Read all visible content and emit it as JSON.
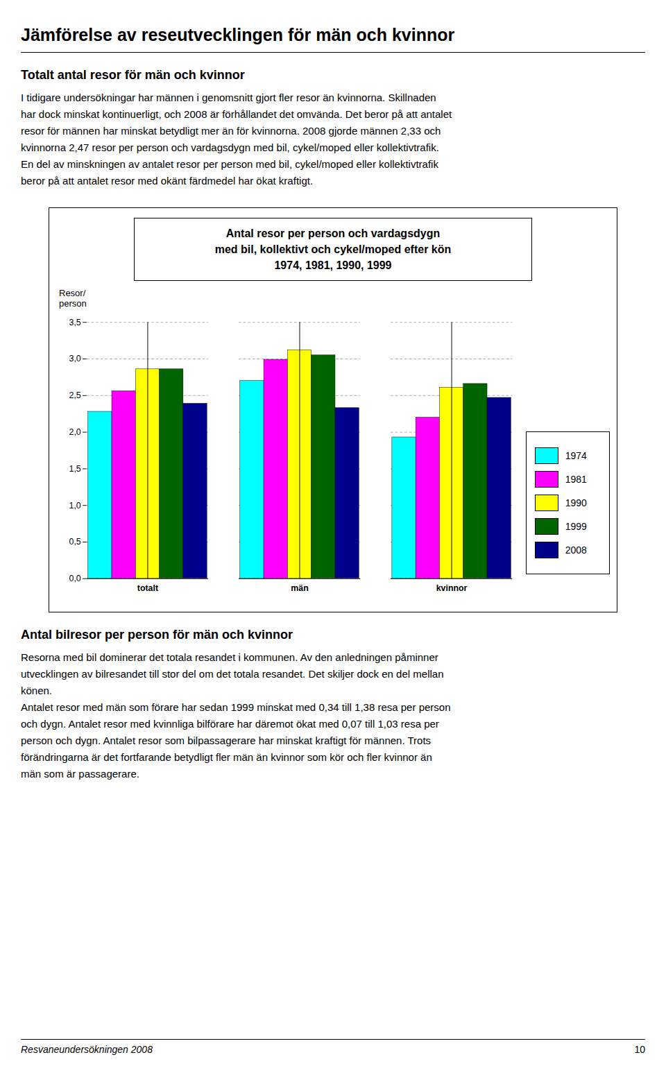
{
  "title": "Jämförelse av reseutvecklingen för män och kvinnor",
  "sections": [
    {
      "heading": "Totalt antal resor för män och kvinnor",
      "lines": [
        "I tidigare undersökningar har männen i genomsnitt gjort fler resor än kvinnorna. Skillnaden",
        "har dock minskat kontinuerligt, och 2008 är förhållandet det omvända. Det beror på att antalet",
        "resor för männen har minskat betydligt mer än för kvinnorna. 2008 gjorde männen 2,33 och",
        "kvinnorna 2,47 resor per person och vardagsdygn med bil, cykel/moped eller kollektivtrafik.",
        "En del av minskningen av antalet resor per person med bil, cykel/moped eller kollektivtrafik",
        "beror på att antalet resor med okänt färdmedel har ökat kraftigt."
      ]
    },
    {
      "heading": "Antal bilresor per person för män och kvinnor",
      "lines": [
        "Resorna med bil dominerar det totala resandet i kommunen. Av den anledningen påminner",
        "utvecklingen av bilresandet till stor del om det totala resandet. Det skiljer dock en del mellan",
        "könen.",
        "Antalet resor med män som förare har sedan 1999 minskat med 0,34 till 1,38 resa per person",
        "och dygn. Antalet resor med kvinnliga bilförare har däremot ökat med 0,07 till 1,03 resa per",
        "person och dygn. Antalet resor som bilpassagerare har minskat kraftigt för männen. Trots",
        "förändringarna är det fortfarande betydligt fler män än kvinnor som kör och fler kvinnor än",
        "män som är passagerare."
      ]
    }
  ],
  "footer": "Resvaneundersökningen 2008",
  "page": "10",
  "chart_data": {
    "type": "bar",
    "title": "Antal resor per person och vardagsdygn\nmed bil, kollektivt och cykel/moped efter kön\n1974, 1981, 1990, 1999",
    "ylabel": "Resor/\nperson",
    "categories": [
      "totalt",
      "män",
      "kvinnor"
    ],
    "series": [
      {
        "name": "1974",
        "color": "#00FFFF",
        "values": [
          2.28,
          2.7,
          1.93
        ]
      },
      {
        "name": "1981",
        "color": "#FF00FF",
        "values": [
          2.56,
          2.99,
          2.2
        ]
      },
      {
        "name": "1990",
        "color": "#FFFF00",
        "values": [
          2.86,
          3.12,
          2.61
        ]
      },
      {
        "name": "1999",
        "color": "#006400",
        "values": [
          2.86,
          3.05,
          2.66
        ]
      },
      {
        "name": "2008",
        "color": "#00008B",
        "values": [
          2.39,
          2.33,
          2.47
        ]
      }
    ],
    "ylim": [
      0.0,
      3.5
    ],
    "yticks": [
      {
        "value": 0.0,
        "label": "0,0"
      },
      {
        "value": 0.5,
        "label": "0,5"
      },
      {
        "value": 1.0,
        "label": "1,0"
      },
      {
        "value": 1.5,
        "label": "1,5"
      },
      {
        "value": 2.0,
        "label": "2,0"
      },
      {
        "value": 2.5,
        "label": "2,5"
      },
      {
        "value": 3.0,
        "label": "3,0"
      },
      {
        "value": 3.5,
        "label": "3,5"
      }
    ],
    "grid": true,
    "legend": "right"
  }
}
